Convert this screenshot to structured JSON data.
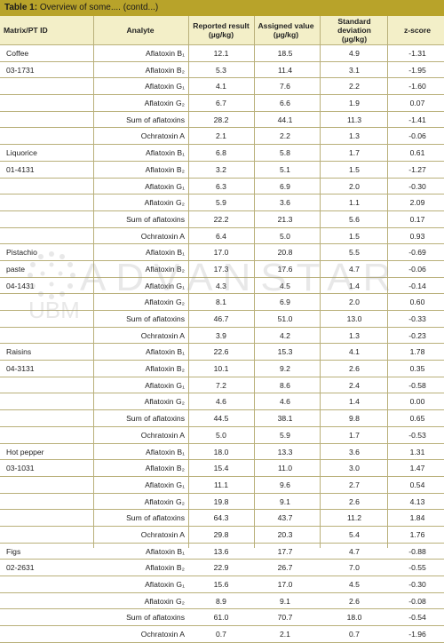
{
  "table": {
    "title_label": "Table 1:",
    "title_text": " Overview of some.... (contd...)",
    "columns": {
      "matrix": "Matrix/PT ID",
      "analyte": "Analyte",
      "reported": "Reported result (µg/kg)",
      "assigned": "Assigned value (µg/kg)",
      "sd": "Standard deviation (µg/kg)",
      "z": "z-score"
    },
    "rows": [
      {
        "matrix": "Coffee",
        "analyte": "Aflatoxin B₁",
        "reported": "12.1",
        "assigned": "18.5",
        "sd": "4.9",
        "z": "-1.31"
      },
      {
        "matrix": "03-1731",
        "analyte": "Aflatoxin B₂",
        "reported": "5.3",
        "assigned": "11.4",
        "sd": "3.1",
        "z": "-1.95"
      },
      {
        "matrix": "",
        "analyte": "Aflatoxin G₁",
        "reported": "4.1",
        "assigned": "7.6",
        "sd": "2.2",
        "z": "-1.60"
      },
      {
        "matrix": "",
        "analyte": "Aflatoxin G₂",
        "reported": "6.7",
        "assigned": "6.6",
        "sd": "1.9",
        "z": "0.07"
      },
      {
        "matrix": "",
        "analyte": "Sum of aflatoxins",
        "reported": "28.2",
        "assigned": "44.1",
        "sd": "11.3",
        "z": "-1.41"
      },
      {
        "matrix": "",
        "analyte": "Ochratoxin A",
        "reported": "2.1",
        "assigned": "2.2",
        "sd": "1.3",
        "z": "-0.06"
      },
      {
        "matrix": "Liquorice",
        "analyte": "Aflatoxin B₁",
        "reported": "6.8",
        "assigned": "5.8",
        "sd": "1.7",
        "z": "0.61"
      },
      {
        "matrix": "01-4131",
        "analyte": "Aflatoxin B₂",
        "reported": "3.2",
        "assigned": "5.1",
        "sd": "1.5",
        "z": "-1.27"
      },
      {
        "matrix": "",
        "analyte": "Aflatoxin G₁",
        "reported": "6.3",
        "assigned": "6.9",
        "sd": "2.0",
        "z": "-0.30"
      },
      {
        "matrix": "",
        "analyte": "Aflatoxin G₂",
        "reported": "5.9",
        "assigned": "3.6",
        "sd": "1.1",
        "z": "2.09"
      },
      {
        "matrix": "",
        "analyte": "Sum of aflatoxins",
        "reported": "22.2",
        "assigned": "21.3",
        "sd": "5.6",
        "z": "0.17"
      },
      {
        "matrix": "",
        "analyte": "Ochratoxin A",
        "reported": "6.4",
        "assigned": "5.0",
        "sd": "1.5",
        "z": "0.93"
      },
      {
        "matrix": "Pistachio",
        "analyte": "Aflatoxin B₁",
        "reported": "17.0",
        "assigned": "20.8",
        "sd": "5.5",
        "z": "-0.69"
      },
      {
        "matrix": "paste",
        "analyte": "Aflatoxin B₂",
        "reported": "17.3",
        "assigned": "17.6",
        "sd": "4.7",
        "z": "-0.06"
      },
      {
        "matrix": "04-1431",
        "analyte": "Aflatoxin G₁",
        "reported": "4.3",
        "assigned": "4.5",
        "sd": "1.4",
        "z": "-0.14"
      },
      {
        "matrix": "",
        "analyte": "Aflatoxin G₂",
        "reported": "8.1",
        "assigned": "6.9",
        "sd": "2.0",
        "z": "0.60"
      },
      {
        "matrix": "",
        "analyte": "Sum of aflatoxins",
        "reported": "46.7",
        "assigned": "51.0",
        "sd": "13.0",
        "z": "-0.33"
      },
      {
        "matrix": "",
        "analyte": "Ochratoxin A",
        "reported": "3.9",
        "assigned": "4.2",
        "sd": "1.3",
        "z": "-0.23"
      },
      {
        "matrix": "Raisins",
        "analyte": "Aflatoxin B₁",
        "reported": "22.6",
        "assigned": "15.3",
        "sd": "4.1",
        "z": "1.78"
      },
      {
        "matrix": "04-3131",
        "analyte": "Aflatoxin B₂",
        "reported": "10.1",
        "assigned": "9.2",
        "sd": "2.6",
        "z": "0.35"
      },
      {
        "matrix": "",
        "analyte": "Aflatoxin G₁",
        "reported": "7.2",
        "assigned": "8.6",
        "sd": "2.4",
        "z": "-0.58"
      },
      {
        "matrix": "",
        "analyte": "Aflatoxin G₂",
        "reported": "4.6",
        "assigned": "4.6",
        "sd": "1.4",
        "z": "0.00"
      },
      {
        "matrix": "",
        "analyte": "Sum of aflatoxins",
        "reported": "44.5",
        "assigned": "38.1",
        "sd": "9.8",
        "z": "0.65"
      },
      {
        "matrix": "",
        "analyte": "Ochratoxin A",
        "reported": "5.0",
        "assigned": "5.9",
        "sd": "1.7",
        "z": "-0.53"
      },
      {
        "matrix": "Hot pepper",
        "analyte": "Aflatoxin B₁",
        "reported": "18.0",
        "assigned": "13.3",
        "sd": "3.6",
        "z": "1.31"
      },
      {
        "matrix": "03-1031",
        "analyte": "Aflatoxin B₂",
        "reported": "15.4",
        "assigned": "11.0",
        "sd": "3.0",
        "z": "1.47"
      },
      {
        "matrix": "",
        "analyte": "Aflatoxin G₁",
        "reported": "11.1",
        "assigned": "9.6",
        "sd": "2.7",
        "z": "0.54"
      },
      {
        "matrix": "",
        "analyte": "Aflatoxin G₂",
        "reported": "19.8",
        "assigned": "9.1",
        "sd": "2.6",
        "z": "4.13"
      },
      {
        "matrix": "",
        "analyte": "Sum of aflatoxins",
        "reported": "64.3",
        "assigned": "43.7",
        "sd": "11.2",
        "z": "1.84"
      },
      {
        "matrix": "",
        "analyte": "Ochratoxin A",
        "reported": "29.8",
        "assigned": "20.3",
        "sd": "5.4",
        "z": "1.76"
      },
      {
        "matrix": "Figs",
        "analyte": "Aflatoxin B₁",
        "reported": "13.6",
        "assigned": "17.7",
        "sd": "4.7",
        "z": "-0.88"
      },
      {
        "matrix": "02-2631",
        "analyte": "Aflatoxin B₂",
        "reported": "22.9",
        "assigned": "26.7",
        "sd": "7.0",
        "z": "-0.55"
      },
      {
        "matrix": "",
        "analyte": "Aflatoxin G₁",
        "reported": "15.6",
        "assigned": "17.0",
        "sd": "4.5",
        "z": "-0.30"
      },
      {
        "matrix": "",
        "analyte": "Aflatoxin G₂",
        "reported": "8.9",
        "assigned": "9.1",
        "sd": "2.6",
        "z": "-0.08"
      },
      {
        "matrix": "",
        "analyte": "Sum of aflatoxins",
        "reported": "61.0",
        "assigned": "70.7",
        "sd": "18.0",
        "z": "-0.54"
      },
      {
        "matrix": "",
        "analyte": "Ochratoxin A",
        "reported": "0.7",
        "assigned": "2.1",
        "sd": "0.7",
        "z": "-1.96"
      }
    ]
  },
  "watermark": {
    "logo_text": "ADVANSTAR",
    "sub_text": "UBM"
  }
}
